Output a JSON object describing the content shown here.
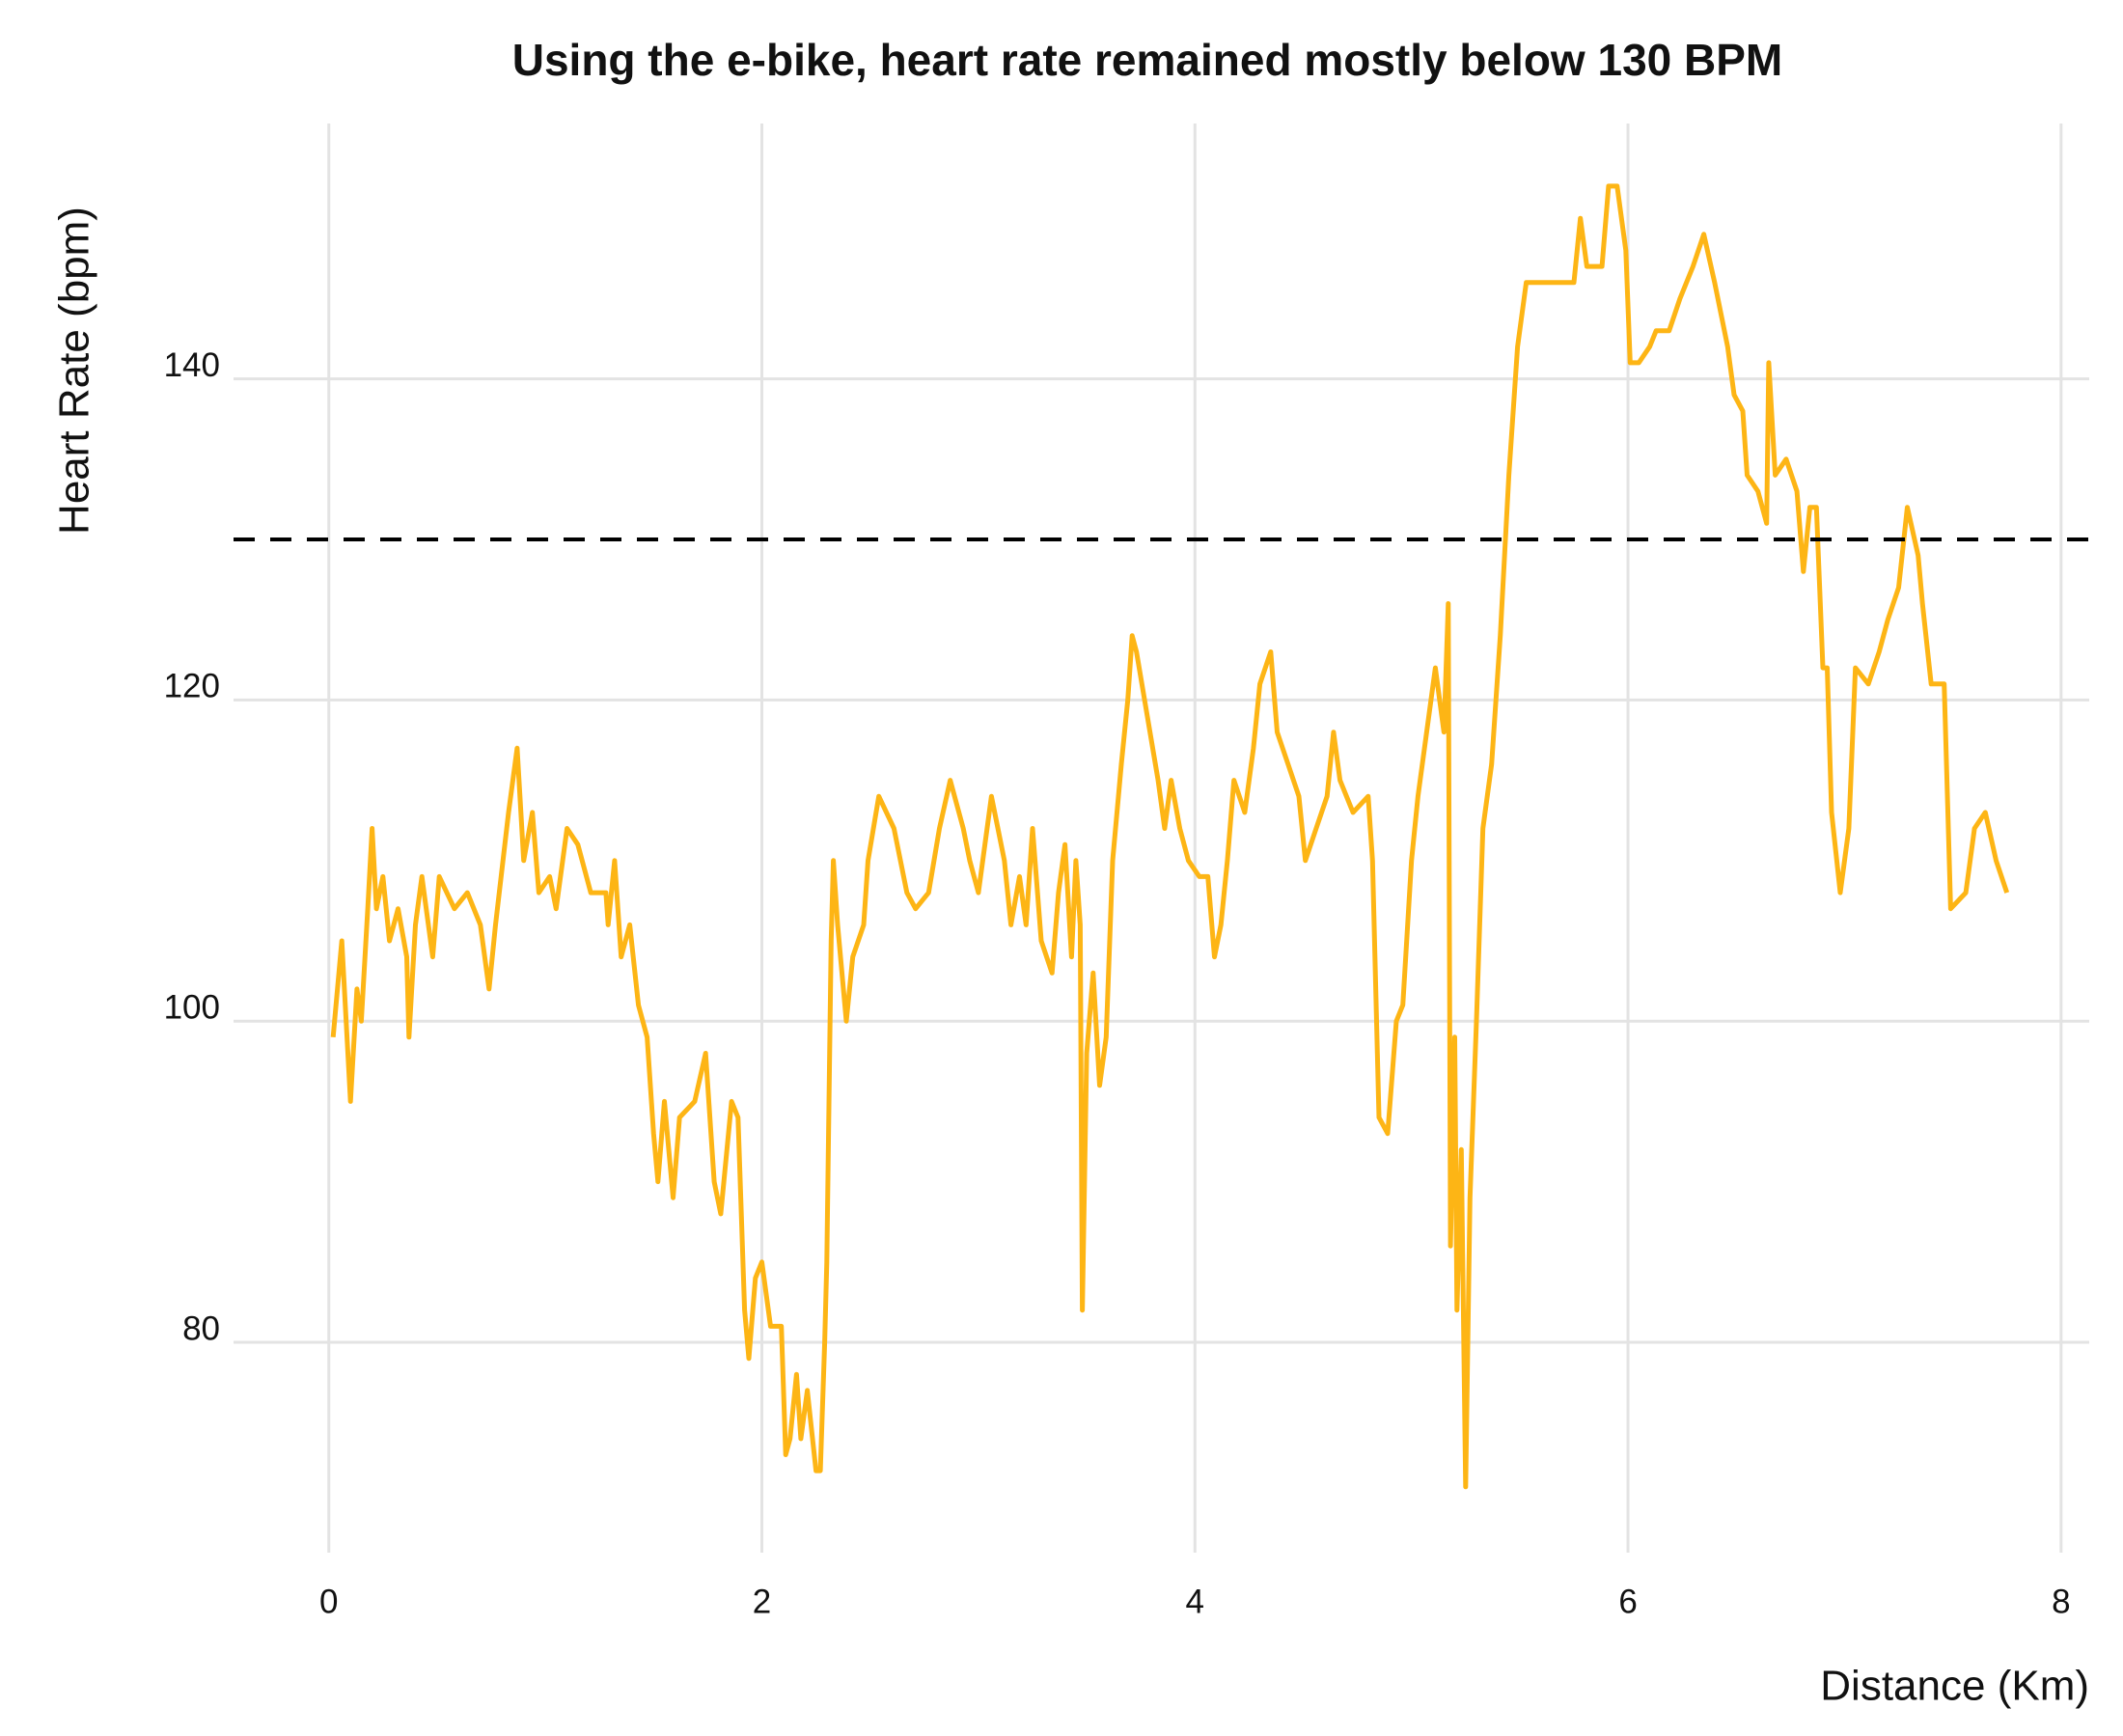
{
  "chart_data": {
    "type": "line",
    "title": "Using the e-bike, heart rate remained mostly below 130 BPM",
    "x_label": "Distance (Km)",
    "y_label": "Heart Rate (bpm)",
    "x": [
      0.02,
      0.06,
      0.1,
      0.13,
      0.15,
      0.18,
      0.2,
      0.22,
      0.25,
      0.28,
      0.32,
      0.36,
      0.37,
      0.4,
      0.43,
      0.48,
      0.51,
      0.58,
      0.64,
      0.7,
      0.74,
      0.77,
      0.83,
      0.87,
      0.9,
      0.94,
      0.97,
      1.02,
      1.05,
      1.1,
      1.15,
      1.21,
      1.28,
      1.29,
      1.32,
      1.35,
      1.39,
      1.43,
      1.47,
      1.5,
      1.52,
      1.55,
      1.59,
      1.62,
      1.69,
      1.74,
      1.78,
      1.81,
      1.86,
      1.89,
      1.92,
      1.94,
      1.97,
      2.0,
      2.04,
      2.09,
      2.11,
      2.13,
      2.16,
      2.18,
      2.21,
      2.25,
      2.27,
      2.29,
      2.3,
      2.32,
      2.33,
      2.35,
      2.39,
      2.42,
      2.47,
      2.49,
      2.54,
      2.61,
      2.67,
      2.71,
      2.77,
      2.82,
      2.87,
      2.93,
      2.96,
      3.0,
      3.06,
      3.12,
      3.15,
      3.19,
      3.22,
      3.25,
      3.29,
      3.34,
      3.37,
      3.4,
      3.43,
      3.45,
      3.47,
      3.48,
      3.5,
      3.53,
      3.56,
      3.59,
      3.62,
      3.66,
      3.69,
      3.71,
      3.73,
      3.78,
      3.83,
      3.86,
      3.89,
      3.93,
      3.97,
      4.02,
      4.06,
      4.09,
      4.12,
      4.15,
      4.18,
      4.23,
      4.27,
      4.3,
      4.35,
      4.38,
      4.43,
      4.48,
      4.51,
      4.56,
      4.61,
      4.64,
      4.67,
      4.73,
      4.8,
      4.82,
      4.85,
      4.89,
      4.93,
      4.96,
      5.0,
      5.03,
      5.07,
      5.11,
      5.15,
      5.17,
      5.18,
      5.2,
      5.21,
      5.23,
      5.25,
      5.27,
      5.3,
      5.33,
      5.37,
      5.41,
      5.45,
      5.49,
      5.53,
      5.59,
      5.71,
      5.75,
      5.78,
      5.81,
      5.88,
      5.91,
      5.95,
      5.99,
      6.01,
      6.05,
      6.1,
      6.13,
      6.19,
      6.24,
      6.3,
      6.35,
      6.4,
      6.46,
      6.49,
      6.53,
      6.55,
      6.6,
      6.64,
      6.65,
      6.68,
      6.73,
      6.78,
      6.81,
      6.84,
      6.87,
      6.9,
      6.92,
      6.94,
      6.98,
      7.02,
      7.05,
      7.11,
      7.16,
      7.2,
      7.25,
      7.29,
      7.34,
      7.36,
      7.4,
      7.46,
      7.49,
      7.56,
      7.6,
      7.65,
      7.7,
      7.75
    ],
    "values": [
      99,
      105,
      95,
      102,
      100,
      107,
      112,
      107,
      109,
      105,
      107,
      104,
      99,
      106,
      109,
      104,
      109,
      107,
      108,
      106,
      102,
      106,
      113,
      117,
      110,
      113,
      108,
      109,
      107,
      112,
      111,
      108,
      108,
      106,
      110,
      104,
      106,
      101,
      99,
      93,
      90,
      95,
      89,
      94,
      95,
      98,
      90,
      88,
      95,
      94,
      82,
      79,
      84,
      85,
      81,
      81,
      73,
      74,
      78,
      74,
      77,
      72,
      72,
      80,
      85,
      105,
      110,
      106,
      100,
      104,
      106,
      110,
      114,
      112,
      108,
      107,
      108,
      112,
      115,
      112,
      110,
      108,
      114,
      110,
      106,
      109,
      106,
      112,
      105,
      103,
      108,
      111,
      104,
      110,
      106,
      82,
      98,
      103,
      96,
      99,
      110,
      116,
      120,
      124,
      123,
      119,
      115,
      112,
      115,
      112,
      110,
      109,
      109,
      104,
      106,
      110,
      115,
      113,
      117,
      121,
      123,
      118,
      116,
      114,
      110,
      112,
      114,
      118,
      115,
      113,
      114,
      110,
      94,
      93,
      100,
      101,
      110,
      114,
      118,
      122,
      118,
      126,
      86,
      99,
      82,
      92,
      71,
      89,
      100,
      112,
      116,
      124,
      134,
      142,
      146,
      146,
      146,
      146,
      150,
      147,
      147,
      152,
      152,
      148,
      141,
      141,
      142,
      143,
      143,
      145,
      147,
      149,
      146,
      142,
      139,
      138,
      134,
      133,
      131,
      141,
      134,
      135,
      133,
      128,
      132,
      132,
      122,
      122,
      113,
      108,
      112,
      122,
      121,
      123,
      125,
      127,
      132,
      129,
      126,
      121,
      121,
      107,
      108,
      112,
      113,
      110,
      108
    ],
    "color": "#FDB515",
    "xlim": [
      -0.44,
      8.13
    ],
    "ylim": [
      66.9,
      155.9
    ],
    "xticks": [
      0,
      2,
      4,
      6,
      8
    ],
    "yticks": [
      80,
      100,
      120,
      140
    ],
    "reference_line": 130,
    "grid": true
  }
}
